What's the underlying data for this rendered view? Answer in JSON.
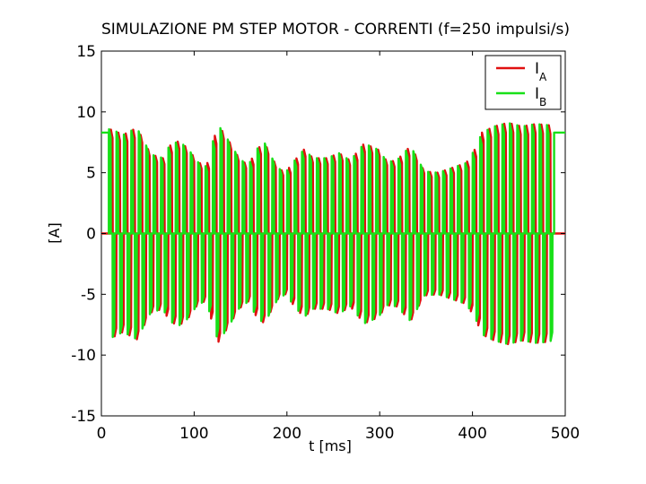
{
  "chart_data": {
    "type": "line",
    "title": "SIMULAZIONE PM STEP MOTOR - CORRENTI (f=250 impulsi/s)",
    "xlabel": "t [ms]",
    "ylabel": "[A]",
    "xlim": [
      0,
      500
    ],
    "ylim": [
      -15,
      15
    ],
    "xticks": [
      0,
      100,
      200,
      300,
      400,
      500
    ],
    "yticks": [
      15,
      10,
      5,
      0,
      -5,
      -10,
      -15
    ],
    "grid": false,
    "legend": {
      "placement": "top-right",
      "entries": [
        {
          "main": "I",
          "sub": "A"
        },
        {
          "main": "I",
          "sub": "B"
        }
      ]
    },
    "frequency_hz": 250,
    "step_period_ms": 4,
    "drive_window_ms": [
      8,
      488
    ],
    "envelope": {
      "t": [
        0,
        8,
        15,
        25,
        40,
        55,
        68,
        75,
        85,
        95,
        105,
        115,
        122,
        128,
        140,
        150,
        160,
        170,
        178,
        185,
        192,
        200,
        210,
        220,
        230,
        245,
        258,
        270,
        285,
        300,
        310,
        320,
        335,
        350,
        365,
        380,
        395,
        405,
        412,
        425,
        440,
        455,
        470,
        485,
        490,
        500
      ],
      "amp": [
        8.3,
        8.6,
        8.5,
        8.1,
        8.7,
        6.5,
        6.2,
        7.2,
        7.6,
        7.0,
        5.9,
        5.5,
        7.6,
        8.9,
        7.5,
        6.2,
        5.6,
        7.0,
        7.4,
        6.3,
        5.4,
        5.0,
        6.0,
        6.9,
        6.2,
        6.2,
        6.6,
        6.0,
        7.4,
        6.9,
        5.9,
        6.0,
        7.2,
        5.1,
        5.0,
        5.4,
        5.8,
        7.0,
        8.3,
        8.8,
        9.1,
        8.8,
        9.0,
        8.9,
        8.6,
        8.3
      ]
    },
    "series": [
      {
        "name": "IA",
        "color": "#e01010",
        "phase_offset_ms": 2,
        "initial_state": 0,
        "final_state": 0
      },
      {
        "name": "IB",
        "color": "#18e018",
        "phase_offset_ms": 0,
        "initial_state": 8.3,
        "final_state": 8.3
      }
    ]
  }
}
